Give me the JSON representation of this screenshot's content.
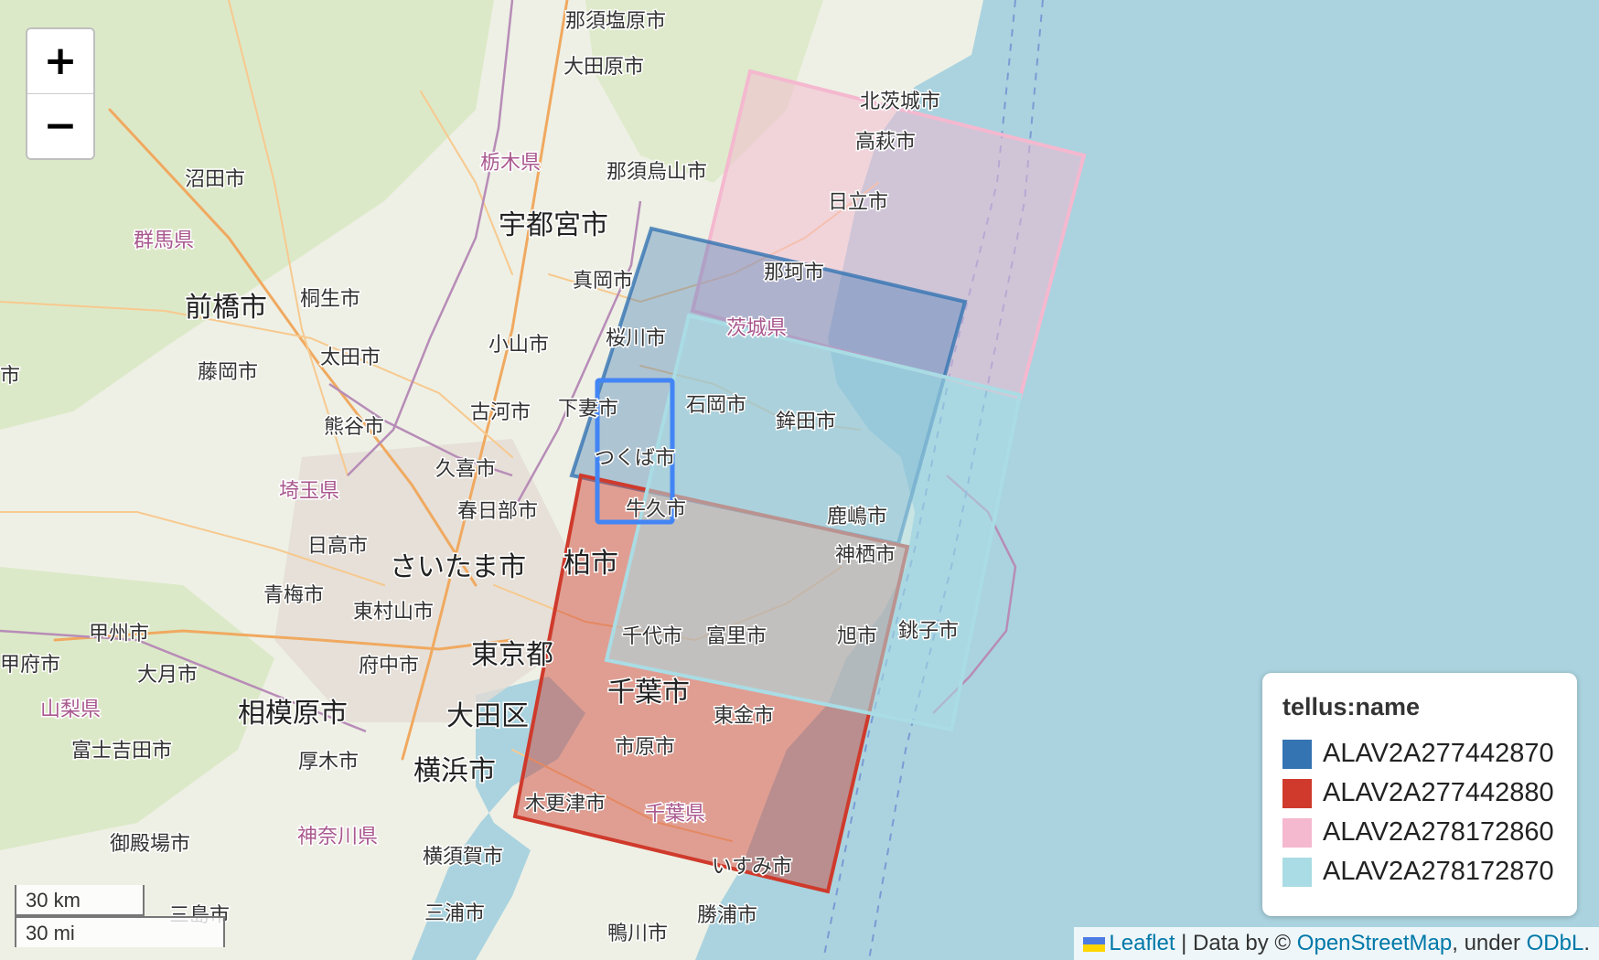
{
  "map": {
    "places": [
      "那須塩原市",
      "大田原市",
      "北茨城市",
      "高萩市",
      "栃木県",
      "那須烏山市",
      "沼田市",
      "日立市",
      "宇都宮市",
      "群馬県",
      "那珂市",
      "真岡市",
      "前橋市",
      "桐生市",
      "茨城県",
      "小山市",
      "桜川市",
      "太田市",
      "藤岡市",
      "石岡市",
      "鉾田市",
      "古河市",
      "下妻市",
      "熊谷市",
      "つくば市",
      "久喜市",
      "埼玉県",
      "春日部市",
      "牛久市",
      "鹿嶋市",
      "日高市",
      "神栖市",
      "さいたま市",
      "柏市",
      "青梅市",
      "東村山市",
      "甲州市",
      "千代市",
      "富里市",
      "旭市",
      "銚子市",
      "東京都",
      "甲府市",
      "府中市",
      "大月市",
      "千葉市",
      "山梨県",
      "相模原市",
      "大田区",
      "東金市",
      "富士吉田市",
      "厚木市",
      "市原市",
      "横浜市",
      "木更津市",
      "千葉県",
      "御殿場市",
      "神奈川県",
      "横須賀市",
      "いすみ市",
      "三浦市",
      "勝浦市",
      "鴨川市",
      "三島市",
      "市"
    ]
  },
  "zoom": {
    "in_label": "+",
    "out_label": "−"
  },
  "scale": {
    "km_label": "30 km",
    "mi_label": "30 mi"
  },
  "legend": {
    "title": "tellus:name",
    "items": [
      {
        "label": "ALAV2A277442870",
        "color": "#3574b3"
      },
      {
        "label": "ALAV2A277442880",
        "color": "#cf3a2c"
      },
      {
        "label": "ALAV2A278172860",
        "color": "#f4b8cf"
      },
      {
        "label": "ALAV2A278172870",
        "color": "#a9dce4"
      }
    ]
  },
  "attribution": {
    "leaflet": "Leaflet",
    "separator": " | Data by © ",
    "osm": "OpenStreetMap",
    "under": ", under ",
    "odbl": "ODbL",
    "end": "."
  }
}
